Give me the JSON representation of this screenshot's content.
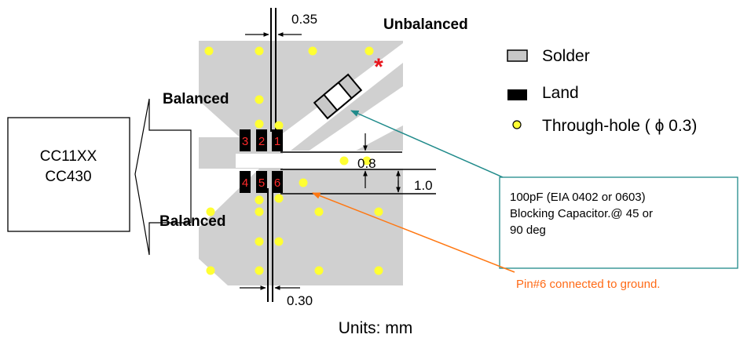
{
  "chip_box": {
    "line1": "CC11XX",
    "line2": "CC430"
  },
  "labels": {
    "unbalanced": "Unbalanced",
    "balanced_top": "Balanced",
    "balanced_bottom": "Balanced",
    "asterisk": "*"
  },
  "pins": [
    "1",
    "2",
    "3",
    "4",
    "5",
    "6"
  ],
  "dimensions": {
    "top_gap": "0.35",
    "bottom_gap": "0.30",
    "pad_gap": "0.8",
    "pitch": "1.0"
  },
  "legend": {
    "solder": "Solder",
    "land": "Land",
    "through_hole": "Through-hole ( ϕ 0.3)"
  },
  "capacitor_note": {
    "line1": "100pF (EIA 0402 or 0603)",
    "line2": "Blocking Capacitor.@ 45 or",
    "line3": "90 deg"
  },
  "ground_note": "Pin#6 connected to ground.",
  "units": "Units: mm",
  "colors": {
    "solder": "#c8c8c8",
    "land": "#000000",
    "via": "#ffff33",
    "pin_text": "#ff2a2a",
    "asterisk": "#e8151c",
    "teal_arrow": "#1f8a8a",
    "orange_arrow": "#ff7711",
    "ground_text": "#ff6a16"
  }
}
